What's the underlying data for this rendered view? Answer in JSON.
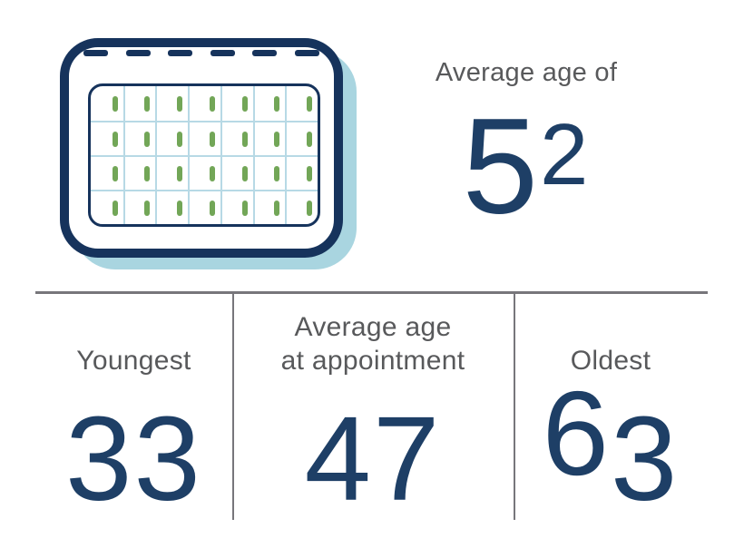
{
  "colors": {
    "navy": "#1e3f66",
    "icon_navy": "#16335c",
    "gray_text": "#58595b",
    "divider": "#77767b",
    "light_blue": "#a9d5e0",
    "grid_blue": "#b7d9e5",
    "green": "#72a657"
  },
  "header": {
    "label": "Average age of",
    "value": "52"
  },
  "icon": {
    "name": "calendar-icon",
    "dashes": 6,
    "rows": 4,
    "cols": 7
  },
  "stats": [
    {
      "label": "Youngest",
      "value": "33"
    },
    {
      "label": "Average age\nat appointment",
      "value": "47"
    },
    {
      "label": "Oldest",
      "value": "63"
    }
  ],
  "chart_data": {
    "type": "table",
    "title": "Average age of 52",
    "categories": [
      "Average age of",
      "Youngest",
      "Average age at appointment",
      "Oldest"
    ],
    "values": [
      52,
      33,
      47,
      63
    ]
  }
}
